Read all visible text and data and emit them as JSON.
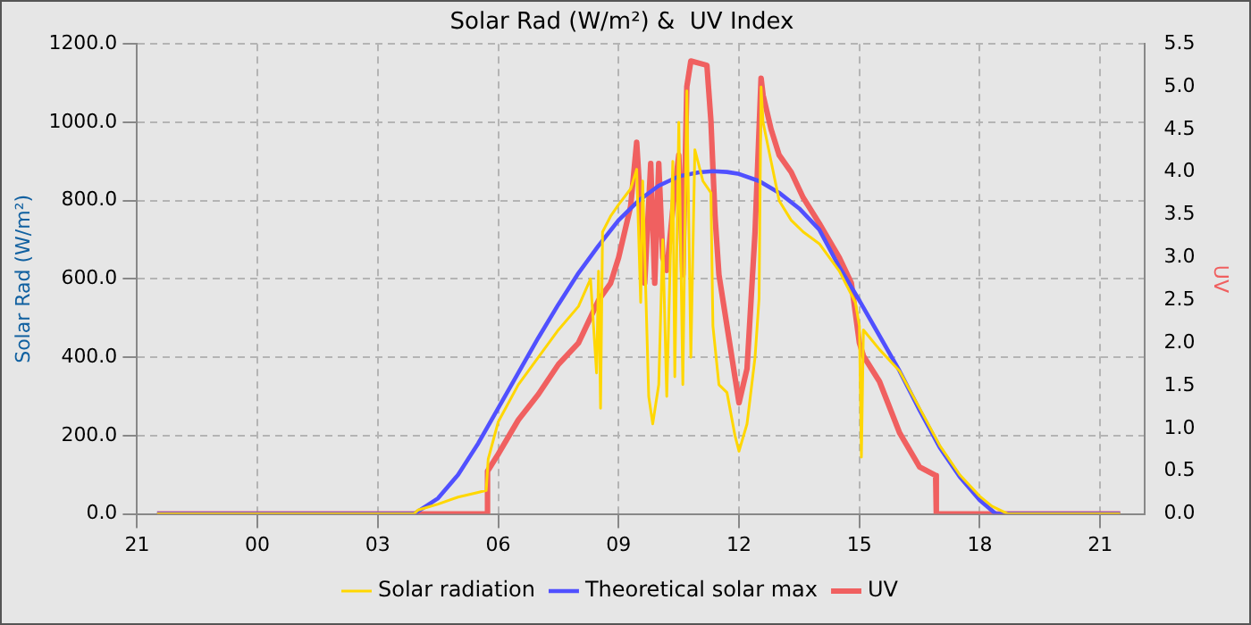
{
  "chart_data": {
    "type": "line",
    "title": "Solar Rad (W/m²) &  UV Index",
    "ylabel": "Solar Rad (W/m²)",
    "y2label": "UV",
    "xlim": [
      "2000-01-01T21:00",
      "2000-01-02T22:06"
    ],
    "xticks": [
      {
        "value": "2000-01-01T21:00",
        "label": "21"
      },
      {
        "value": "2000-01-02T00:00",
        "label": "00"
      },
      {
        "value": "2000-01-02T03:00",
        "label": "03"
      },
      {
        "value": "2000-01-02T06:00",
        "label": "06"
      },
      {
        "value": "2000-01-02T09:00",
        "label": "09"
      },
      {
        "value": "2000-01-02T12:00",
        "label": "12"
      },
      {
        "value": "2000-01-02T15:00",
        "label": "15"
      },
      {
        "value": "2000-01-02T18:00",
        "label": "18"
      },
      {
        "value": "2000-01-02T21:00",
        "label": "21"
      }
    ],
    "ylim": [
      0,
      1200
    ],
    "yticks": [
      {
        "value": 0,
        "label": "0.0"
      },
      {
        "value": 200,
        "label": "200.0"
      },
      {
        "value": 400,
        "label": "400.0"
      },
      {
        "value": 600,
        "label": "600.0"
      },
      {
        "value": 800,
        "label": "800.0"
      },
      {
        "value": 1000,
        "label": "1000.0"
      },
      {
        "value": 1200,
        "label": "1200.0"
      }
    ],
    "y2lim": [
      0,
      5.5
    ],
    "y2ticks": [
      {
        "value": 0,
        "label": "0.0"
      },
      {
        "value": 0.5,
        "label": "0.5"
      },
      {
        "value": 1,
        "label": "1.0"
      },
      {
        "value": 1.5,
        "label": "1.5"
      },
      {
        "value": 2,
        "label": "2.0"
      },
      {
        "value": 2.5,
        "label": "2.5"
      },
      {
        "value": 3,
        "label": "3.0"
      },
      {
        "value": 3.5,
        "label": "3.5"
      },
      {
        "value": 4,
        "label": "4.0"
      },
      {
        "value": 4.5,
        "label": "4.5"
      },
      {
        "value": 5,
        "label": "5.0"
      },
      {
        "value": 5.5,
        "label": "5.5"
      }
    ],
    "grid": true,
    "legend": "bottom",
    "marker": "none",
    "line_style": "solid",
    "series": [
      {
        "name": "Solar radiation",
        "color": "#ffd700",
        "x": [
          "2000-01-01T21:30",
          "2000-01-02T03:54",
          "2000-01-02T04:00",
          "2000-01-02T04:30",
          "2000-01-02T05:00",
          "2000-01-02T05:30",
          "2000-01-02T05:42",
          "2000-01-02T05:45",
          "2000-01-02T06:00",
          "2000-01-02T06:30",
          "2000-01-02T07:00",
          "2000-01-02T07:30",
          "2000-01-02T08:00",
          "2000-01-02T08:18",
          "2000-01-02T08:27",
          "2000-01-02T08:30",
          "2000-01-02T08:33",
          "2000-01-02T08:36",
          "2000-01-02T08:48",
          "2000-01-02T09:00",
          "2000-01-02T09:18",
          "2000-01-02T09:27",
          "2000-01-02T09:33",
          "2000-01-02T09:36",
          "2000-01-02T09:45",
          "2000-01-02T09:51",
          "2000-01-02T10:00",
          "2000-01-02T10:06",
          "2000-01-02T10:12",
          "2000-01-02T10:21",
          "2000-01-02T10:24",
          "2000-01-02T10:30",
          "2000-01-02T10:36",
          "2000-01-02T10:42",
          "2000-01-02T10:48",
          "2000-01-02T10:54",
          "2000-01-02T11:06",
          "2000-01-02T11:18",
          "2000-01-02T11:21",
          "2000-01-02T11:30",
          "2000-01-02T11:42",
          "2000-01-02T11:54",
          "2000-01-02T12:00",
          "2000-01-02T12:12",
          "2000-01-02T12:24",
          "2000-01-02T12:30",
          "2000-01-02T12:33",
          "2000-01-02T12:36",
          "2000-01-02T12:48",
          "2000-01-02T13:00",
          "2000-01-02T13:18",
          "2000-01-02T13:36",
          "2000-01-02T14:00",
          "2000-01-02T14:30",
          "2000-01-02T14:54",
          "2000-01-02T15:00",
          "2000-01-02T15:03",
          "2000-01-02T15:06",
          "2000-01-02T15:30",
          "2000-01-02T16:00",
          "2000-01-02T16:30",
          "2000-01-02T17:00",
          "2000-01-02T17:30",
          "2000-01-02T18:00",
          "2000-01-02T18:18",
          "2000-01-02T18:36",
          "2000-01-02T18:42",
          "2000-01-02T21:30"
        ],
        "values": [
          0,
          0,
          10,
          25,
          43,
          55,
          60,
          140,
          235,
          330,
          400,
          470,
          530,
          600,
          360,
          620,
          270,
          720,
          760,
          790,
          830,
          880,
          540,
          850,
          300,
          230,
          330,
          700,
          300,
          900,
          350,
          1000,
          330,
          1080,
          400,
          930,
          850,
          820,
          480,
          330,
          310,
          200,
          160,
          230,
          400,
          550,
          1090,
          1000,
          900,
          800,
          750,
          720,
          690,
          620,
          540,
          480,
          145,
          470,
          420,
          365,
          270,
          175,
          100,
          45,
          20,
          5,
          0,
          0
        ]
      },
      {
        "name": "Theoretical solar max",
        "color": "#5050ff",
        "x": [
          "2000-01-01T21:30",
          "2000-01-02T03:54",
          "2000-01-02T04:30",
          "2000-01-02T05:00",
          "2000-01-02T05:30",
          "2000-01-02T06:00",
          "2000-01-02T06:30",
          "2000-01-02T07:00",
          "2000-01-02T07:30",
          "2000-01-02T08:00",
          "2000-01-02T08:30",
          "2000-01-02T09:00",
          "2000-01-02T09:30",
          "2000-01-02T10:00",
          "2000-01-02T10:30",
          "2000-01-02T11:00",
          "2000-01-02T11:21",
          "2000-01-02T11:42",
          "2000-01-02T12:00",
          "2000-01-02T12:30",
          "2000-01-02T13:00",
          "2000-01-02T13:30",
          "2000-01-02T14:00",
          "2000-01-02T14:30",
          "2000-01-02T15:00",
          "2000-01-02T15:30",
          "2000-01-02T16:00",
          "2000-01-02T16:30",
          "2000-01-02T17:00",
          "2000-01-02T17:30",
          "2000-01-02T18:00",
          "2000-01-02T18:24",
          "2000-01-02T21:30"
        ],
        "values": [
          0,
          0,
          40,
          100,
          180,
          270,
          360,
          450,
          535,
          615,
          685,
          750,
          800,
          838,
          862,
          872,
          875,
          873,
          868,
          850,
          820,
          780,
          726,
          630,
          545,
          455,
          365,
          265,
          170,
          95,
          35,
          0,
          0
        ]
      },
      {
        "name": "UV",
        "color": "#f06060",
        "axis": "y2",
        "x": [
          "2000-01-01T21:30",
          "2000-01-02T05:42",
          "2000-01-02T05:44",
          "2000-01-02T06:00",
          "2000-01-02T06:30",
          "2000-01-02T07:00",
          "2000-01-02T07:30",
          "2000-01-02T08:00",
          "2000-01-02T08:30",
          "2000-01-02T08:48",
          "2000-01-02T09:00",
          "2000-01-02T09:18",
          "2000-01-02T09:27",
          "2000-01-02T09:36",
          "2000-01-02T09:39",
          "2000-01-02T09:48",
          "2000-01-02T09:54",
          "2000-01-02T10:00",
          "2000-01-02T10:06",
          "2000-01-02T10:12",
          "2000-01-02T10:24",
          "2000-01-02T10:30",
          "2000-01-02T10:36",
          "2000-01-02T10:42",
          "2000-01-02T10:48",
          "2000-01-02T11:12",
          "2000-01-02T11:18",
          "2000-01-02T11:24",
          "2000-01-02T11:30",
          "2000-01-02T11:42",
          "2000-01-02T11:54",
          "2000-01-02T12:00",
          "2000-01-02T12:12",
          "2000-01-02T12:18",
          "2000-01-02T12:24",
          "2000-01-02T12:33",
          "2000-01-02T12:36",
          "2000-01-02T12:48",
          "2000-01-02T13:00",
          "2000-01-02T13:18",
          "2000-01-02T13:36",
          "2000-01-02T14:00",
          "2000-01-02T14:30",
          "2000-01-02T14:48",
          "2000-01-02T15:00",
          "2000-01-02T15:06",
          "2000-01-02T15:30",
          "2000-01-02T16:00",
          "2000-01-02T16:30",
          "2000-01-02T16:54",
          "2000-01-02T16:55",
          "2000-01-02T21:30"
        ],
        "values": [
          0,
          0,
          0.5,
          0.7,
          1.1,
          1.4,
          1.75,
          2.0,
          2.5,
          2.7,
          3.0,
          3.6,
          4.35,
          3.2,
          2.7,
          4.1,
          2.7,
          4.1,
          3.0,
          2.85,
          3.8,
          4.2,
          2.8,
          5.0,
          5.3,
          5.25,
          4.6,
          3.5,
          2.8,
          2.2,
          1.6,
          1.3,
          1.7,
          2.5,
          3.3,
          5.1,
          4.9,
          4.5,
          4.2,
          4.0,
          3.7,
          3.4,
          3.0,
          2.7,
          2.0,
          1.85,
          1.55,
          0.95,
          0.55,
          0.45,
          0,
          0
        ]
      }
    ]
  }
}
